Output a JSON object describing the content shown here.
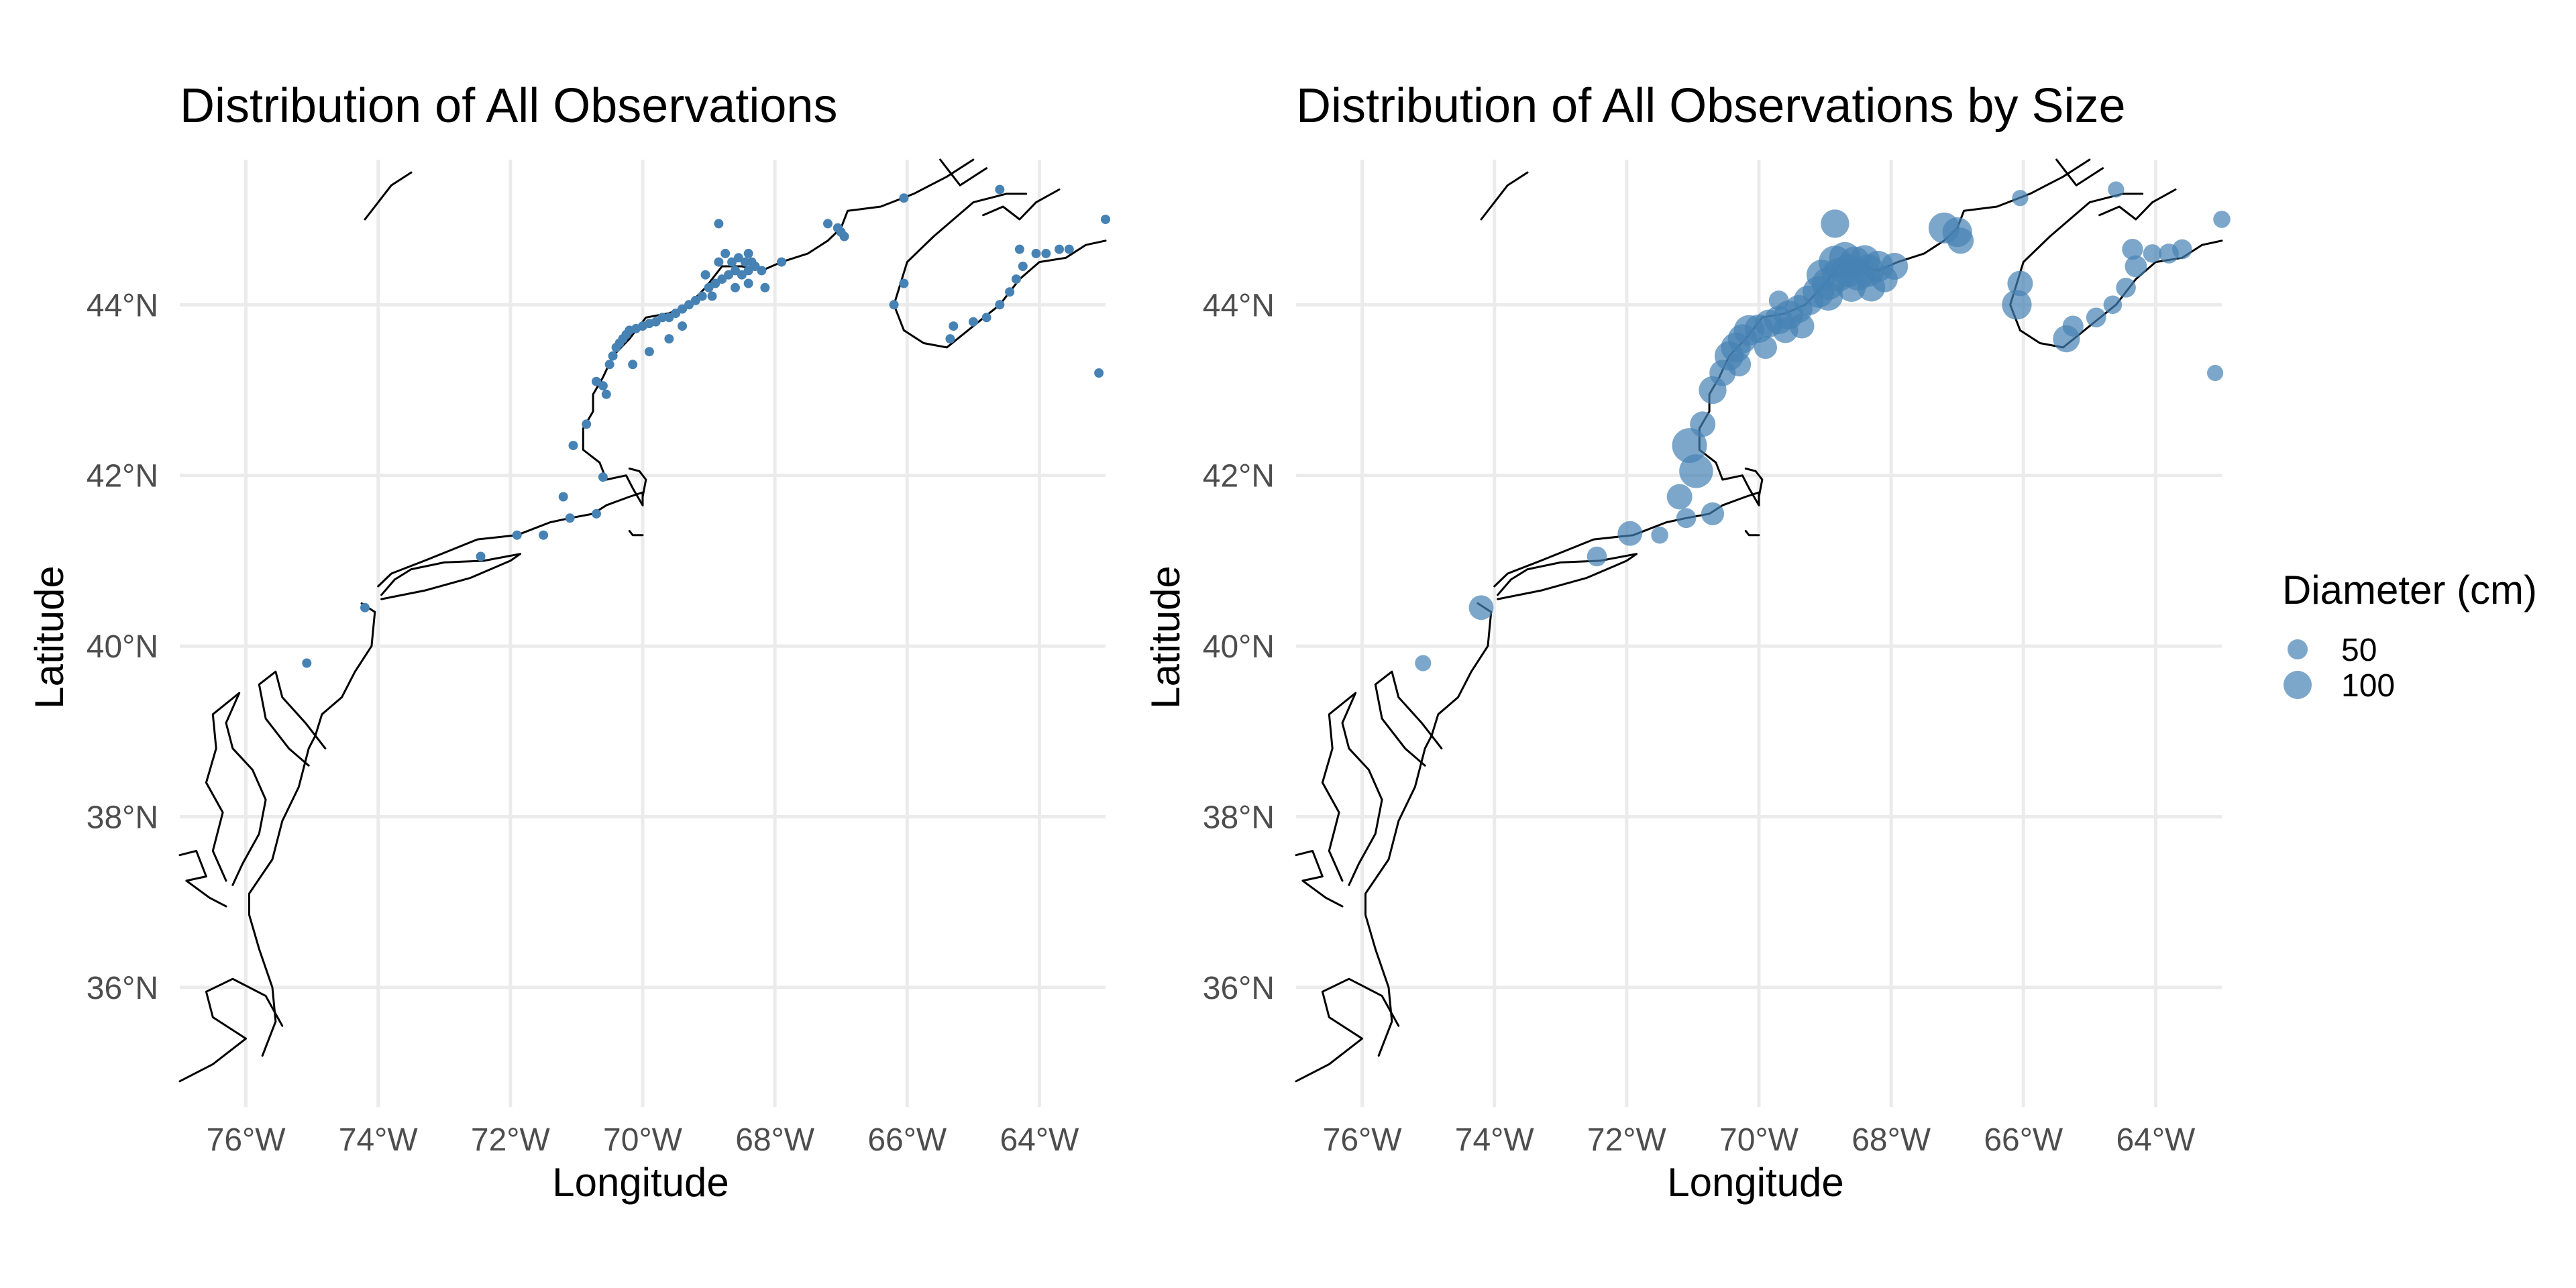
{
  "chart_data": [
    {
      "type": "scatter",
      "title": "Distribution of All Observations",
      "xlabel": "Longitude",
      "ylabel": "Latitude",
      "xlim": [
        -77.0,
        -63.0
      ],
      "ylim": [
        34.6,
        45.7
      ],
      "x_ticks": [
        -76,
        -74,
        -72,
        -70,
        -68,
        -66,
        -64
      ],
      "x_tick_labels": [
        "76°W",
        "74°W",
        "72°W",
        "70°W",
        "68°W",
        "66°W",
        "64°W"
      ],
      "y_ticks": [
        36,
        38,
        40,
        42,
        44
      ],
      "y_tick_labels": [
        "36°N",
        "38°N",
        "40°N",
        "42°N",
        "44°N"
      ],
      "grid": true,
      "point_color": "#4682b4",
      "basemap": "coastline",
      "points": [
        {
          "lon": -74.2,
          "lat": 40.45
        },
        {
          "lon": -75.08,
          "lat": 39.8
        },
        {
          "lon": -72.45,
          "lat": 41.05
        },
        {
          "lon": -71.9,
          "lat": 41.3
        },
        {
          "lon": -71.5,
          "lat": 41.3
        },
        {
          "lon": -71.1,
          "lat": 41.5
        },
        {
          "lon": -71.2,
          "lat": 41.75
        },
        {
          "lon": -70.7,
          "lat": 41.55
        },
        {
          "lon": -70.6,
          "lat": 41.98
        },
        {
          "lon": -71.05,
          "lat": 42.35
        },
        {
          "lon": -70.85,
          "lat": 42.6
        },
        {
          "lon": -70.7,
          "lat": 43.1
        },
        {
          "lon": -70.6,
          "lat": 43.05
        },
        {
          "lon": -70.55,
          "lat": 42.95
        },
        {
          "lon": -70.5,
          "lat": 43.3
        },
        {
          "lon": -70.45,
          "lat": 43.4
        },
        {
          "lon": -70.4,
          "lat": 43.5
        },
        {
          "lon": -70.35,
          "lat": 43.55
        },
        {
          "lon": -70.3,
          "lat": 43.6
        },
        {
          "lon": -70.25,
          "lat": 43.65
        },
        {
          "lon": -70.2,
          "lat": 43.7
        },
        {
          "lon": -70.1,
          "lat": 43.72
        },
        {
          "lon": -70.0,
          "lat": 43.75
        },
        {
          "lon": -69.9,
          "lat": 43.78
        },
        {
          "lon": -69.8,
          "lat": 43.8
        },
        {
          "lon": -69.7,
          "lat": 43.85
        },
        {
          "lon": -69.6,
          "lat": 43.85
        },
        {
          "lon": -69.5,
          "lat": 43.9
        },
        {
          "lon": -69.4,
          "lat": 43.95
        },
        {
          "lon": -69.3,
          "lat": 44.0
        },
        {
          "lon": -69.2,
          "lat": 44.05
        },
        {
          "lon": -69.1,
          "lat": 44.1
        },
        {
          "lon": -69.0,
          "lat": 44.2
        },
        {
          "lon": -68.9,
          "lat": 44.25
        },
        {
          "lon": -68.8,
          "lat": 44.3
        },
        {
          "lon": -68.7,
          "lat": 44.35
        },
        {
          "lon": -68.6,
          "lat": 44.4
        },
        {
          "lon": -68.5,
          "lat": 44.35
        },
        {
          "lon": -68.4,
          "lat": 44.4
        },
        {
          "lon": -68.3,
          "lat": 44.45
        },
        {
          "lon": -68.2,
          "lat": 44.4
        },
        {
          "lon": -68.85,
          "lat": 44.5
        },
        {
          "lon": -68.75,
          "lat": 44.6
        },
        {
          "lon": -68.65,
          "lat": 44.5
        },
        {
          "lon": -68.55,
          "lat": 44.55
        },
        {
          "lon": -68.45,
          "lat": 44.5
        },
        {
          "lon": -68.35,
          "lat": 44.5
        },
        {
          "lon": -69.05,
          "lat": 44.35
        },
        {
          "lon": -68.95,
          "lat": 44.1
        },
        {
          "lon": -68.6,
          "lat": 44.2
        },
        {
          "lon": -68.4,
          "lat": 44.25
        },
        {
          "lon": -68.15,
          "lat": 44.2
        },
        {
          "lon": -69.6,
          "lat": 43.6
        },
        {
          "lon": -69.9,
          "lat": 43.45
        },
        {
          "lon": -70.15,
          "lat": 43.3
        },
        {
          "lon": -69.4,
          "lat": 43.75
        },
        {
          "lon": -68.85,
          "lat": 44.95
        },
        {
          "lon": -68.4,
          "lat": 44.6
        },
        {
          "lon": -67.9,
          "lat": 44.5
        },
        {
          "lon": -67.2,
          "lat": 44.95
        },
        {
          "lon": -67.05,
          "lat": 44.9
        },
        {
          "lon": -67.0,
          "lat": 44.85
        },
        {
          "lon": -66.95,
          "lat": 44.8
        },
        {
          "lon": -66.05,
          "lat": 44.25
        },
        {
          "lon": -66.2,
          "lat": 44.0
        },
        {
          "lon": -65.35,
          "lat": 43.6
        },
        {
          "lon": -65.3,
          "lat": 43.75
        },
        {
          "lon": -65.0,
          "lat": 43.8
        },
        {
          "lon": -64.8,
          "lat": 43.85
        },
        {
          "lon": -64.6,
          "lat": 44.0
        },
        {
          "lon": -64.45,
          "lat": 44.15
        },
        {
          "lon": -64.35,
          "lat": 44.3
        },
        {
          "lon": -64.25,
          "lat": 44.45
        },
        {
          "lon": -64.05,
          "lat": 44.6
        },
        {
          "lon": -63.9,
          "lat": 44.6
        },
        {
          "lon": -63.7,
          "lat": 44.65
        },
        {
          "lon": -63.55,
          "lat": 44.65
        },
        {
          "lon": -64.3,
          "lat": 44.65
        },
        {
          "lon": -63.0,
          "lat": 45.0
        },
        {
          "lon": -63.1,
          "lat": 43.2
        },
        {
          "lon": -66.05,
          "lat": 45.25
        },
        {
          "lon": -64.6,
          "lat": 45.35
        }
      ]
    },
    {
      "type": "scatter",
      "title": "Distribution of All Observations by Size",
      "xlabel": "Longitude",
      "ylabel": "Latitude",
      "xlim": [
        -77.0,
        -63.0
      ],
      "ylim": [
        34.6,
        45.7
      ],
      "x_ticks": [
        -76,
        -74,
        -72,
        -70,
        -68,
        -66,
        -64
      ],
      "x_tick_labels": [
        "76°W",
        "74°W",
        "72°W",
        "70°W",
        "68°W",
        "66°W",
        "64°W"
      ],
      "y_ticks": [
        36,
        38,
        40,
        42,
        44
      ],
      "y_tick_labels": [
        "36°N",
        "38°N",
        "40°N",
        "42°N",
        "44°N"
      ],
      "grid": true,
      "point_color": "#4682b4",
      "point_opacity": 0.7,
      "basemap": "coastline",
      "size_variable": "diameter_cm",
      "legend": {
        "title": "Diameter (cm)",
        "position": "right",
        "entries": [
          {
            "label": "50",
            "value": 50
          },
          {
            "label": "100",
            "value": 100
          }
        ]
      },
      "points": [
        {
          "lon": -74.2,
          "lat": 40.45,
          "diameter_cm": 50
        },
        {
          "lon": -75.08,
          "lat": 39.8,
          "diameter_cm": 12
        },
        {
          "lon": -72.45,
          "lat": 41.05,
          "diameter_cm": 25
        },
        {
          "lon": -71.95,
          "lat": 41.32,
          "diameter_cm": 50
        },
        {
          "lon": -71.5,
          "lat": 41.3,
          "diameter_cm": 15
        },
        {
          "lon": -71.1,
          "lat": 41.5,
          "diameter_cm": 25
        },
        {
          "lon": -71.2,
          "lat": 41.75,
          "diameter_cm": 55
        },
        {
          "lon": -70.7,
          "lat": 41.55,
          "diameter_cm": 40
        },
        {
          "lon": -70.95,
          "lat": 42.05,
          "diameter_cm": 120
        },
        {
          "lon": -71.05,
          "lat": 42.35,
          "diameter_cm": 130
        },
        {
          "lon": -70.85,
          "lat": 42.6,
          "diameter_cm": 55
        },
        {
          "lon": -70.7,
          "lat": 43.0,
          "diameter_cm": 70
        },
        {
          "lon": -70.55,
          "lat": 43.2,
          "diameter_cm": 60
        },
        {
          "lon": -70.45,
          "lat": 43.4,
          "diameter_cm": 80
        },
        {
          "lon": -70.35,
          "lat": 43.5,
          "diameter_cm": 85
        },
        {
          "lon": -70.25,
          "lat": 43.6,
          "diameter_cm": 80
        },
        {
          "lon": -70.15,
          "lat": 43.7,
          "diameter_cm": 90
        },
        {
          "lon": -70.0,
          "lat": 43.72,
          "diameter_cm": 75
        },
        {
          "lon": -69.85,
          "lat": 43.78,
          "diameter_cm": 70
        },
        {
          "lon": -69.7,
          "lat": 43.82,
          "diameter_cm": 75
        },
        {
          "lon": -69.55,
          "lat": 43.88,
          "diameter_cm": 80
        },
        {
          "lon": -69.4,
          "lat": 43.95,
          "diameter_cm": 70
        },
        {
          "lon": -69.25,
          "lat": 44.05,
          "diameter_cm": 85
        },
        {
          "lon": -69.1,
          "lat": 44.15,
          "diameter_cm": 100
        },
        {
          "lon": -68.95,
          "lat": 44.25,
          "diameter_cm": 110
        },
        {
          "lon": -68.8,
          "lat": 44.35,
          "diameter_cm": 115
        },
        {
          "lon": -68.65,
          "lat": 44.4,
          "diameter_cm": 110
        },
        {
          "lon": -68.5,
          "lat": 44.35,
          "diameter_cm": 100
        },
        {
          "lon": -68.35,
          "lat": 44.4,
          "diameter_cm": 105
        },
        {
          "lon": -68.2,
          "lat": 44.45,
          "diameter_cm": 95
        },
        {
          "lon": -68.85,
          "lat": 44.5,
          "diameter_cm": 110
        },
        {
          "lon": -68.7,
          "lat": 44.55,
          "diameter_cm": 100
        },
        {
          "lon": -68.55,
          "lat": 44.5,
          "diameter_cm": 95
        },
        {
          "lon": -68.4,
          "lat": 44.52,
          "diameter_cm": 90
        },
        {
          "lon": -69.05,
          "lat": 44.35,
          "diameter_cm": 90
        },
        {
          "lon": -68.95,
          "lat": 44.1,
          "diameter_cm": 80
        },
        {
          "lon": -68.6,
          "lat": 44.2,
          "diameter_cm": 75
        },
        {
          "lon": -68.3,
          "lat": 44.2,
          "diameter_cm": 70
        },
        {
          "lon": -68.1,
          "lat": 44.3,
          "diameter_cm": 60
        },
        {
          "lon": -67.95,
          "lat": 44.45,
          "diameter_cm": 65
        },
        {
          "lon": -69.6,
          "lat": 43.7,
          "diameter_cm": 55
        },
        {
          "lon": -69.9,
          "lat": 43.5,
          "diameter_cm": 40
        },
        {
          "lon": -70.3,
          "lat": 43.3,
          "diameter_cm": 45
        },
        {
          "lon": -69.35,
          "lat": 43.75,
          "diameter_cm": 50
        },
        {
          "lon": -68.85,
          "lat": 44.95,
          "diameter_cm": 75
        },
        {
          "lon": -69.7,
          "lat": 44.05,
          "diameter_cm": 25
        },
        {
          "lon": -67.2,
          "lat": 44.9,
          "diameter_cm": 95
        },
        {
          "lon": -67.0,
          "lat": 44.85,
          "diameter_cm": 85
        },
        {
          "lon": -66.95,
          "lat": 44.75,
          "diameter_cm": 60
        },
        {
          "lon": -66.05,
          "lat": 44.25,
          "diameter_cm": 55
        },
        {
          "lon": -66.1,
          "lat": 44.0,
          "diameter_cm": 85
        },
        {
          "lon": -65.35,
          "lat": 43.6,
          "diameter_cm": 65
        },
        {
          "lon": -65.25,
          "lat": 43.75,
          "diameter_cm": 30
        },
        {
          "lon": -64.9,
          "lat": 43.85,
          "diameter_cm": 25
        },
        {
          "lon": -64.65,
          "lat": 44.0,
          "diameter_cm": 20
        },
        {
          "lon": -64.45,
          "lat": 44.2,
          "diameter_cm": 25
        },
        {
          "lon": -64.3,
          "lat": 44.45,
          "diameter_cm": 35
        },
        {
          "lon": -64.05,
          "lat": 44.6,
          "diameter_cm": 20
        },
        {
          "lon": -63.8,
          "lat": 44.6,
          "diameter_cm": 25
        },
        {
          "lon": -63.6,
          "lat": 44.65,
          "diameter_cm": 25
        },
        {
          "lon": -64.35,
          "lat": 44.65,
          "diameter_cm": 30
        },
        {
          "lon": -63.0,
          "lat": 45.0,
          "diameter_cm": 15
        },
        {
          "lon": -63.1,
          "lat": 43.2,
          "diameter_cm": 12
        },
        {
          "lon": -66.05,
          "lat": 45.25,
          "diameter_cm": 12
        },
        {
          "lon": -64.6,
          "lat": 45.35,
          "diameter_cm": 12
        }
      ]
    }
  ]
}
